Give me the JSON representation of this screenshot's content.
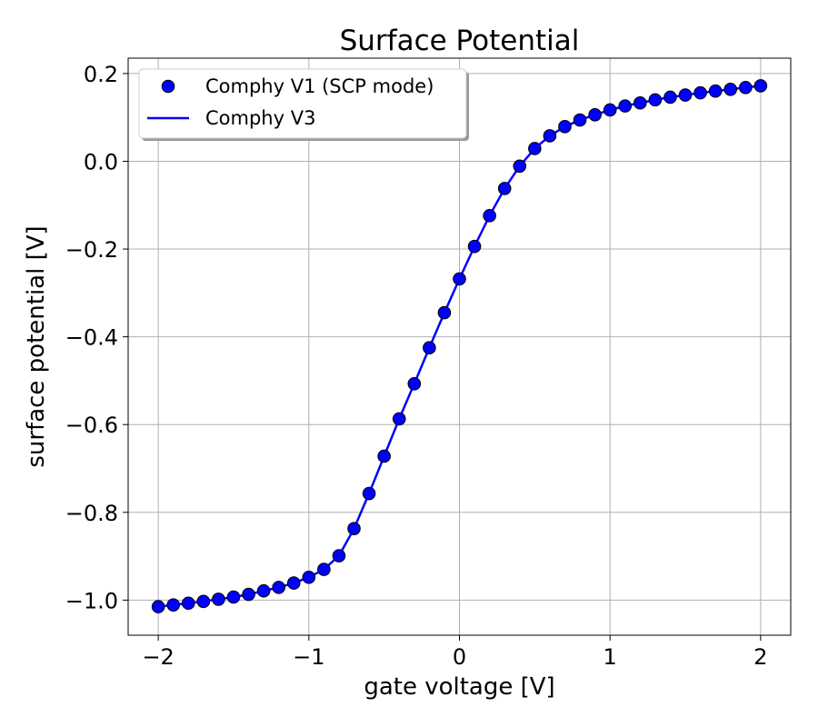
{
  "chart_data": {
    "type": "line",
    "title": "Surface Potential",
    "xlabel": "gate voltage [V]",
    "ylabel": "surface potential [V]",
    "xlim": [
      -2.2,
      2.2
    ],
    "ylim": [
      -1.08,
      0.235
    ],
    "x_ticks": [
      -2,
      -1,
      0,
      1,
      2
    ],
    "x_tick_labels": [
      "−2",
      "−1",
      "0",
      "1",
      "2"
    ],
    "y_ticks": [
      -1.0,
      -0.8,
      -0.6,
      -0.4,
      -0.2,
      0.0,
      0.2
    ],
    "y_tick_labels": [
      "−1.0",
      "−0.8",
      "−0.6",
      "−0.4",
      "−0.2",
      "0.0",
      "0.2"
    ],
    "grid": true,
    "legend_position": "top-left",
    "series": [
      {
        "name": "Comphy V1 (SCP mode)",
        "style": "markers",
        "color": "#0000ff",
        "x": [
          -2.0,
          -1.9,
          -1.8,
          -1.7,
          -1.6,
          -1.5,
          -1.4,
          -1.3,
          -1.2,
          -1.1,
          -1.0,
          -0.9,
          -0.8,
          -0.7,
          -0.6,
          -0.5,
          -0.4,
          -0.3,
          -0.2,
          -0.1,
          0.0,
          0.1,
          0.2,
          0.3,
          0.4,
          0.5,
          0.6,
          0.7,
          0.8,
          0.9,
          1.0,
          1.1,
          1.2,
          1.3,
          1.4,
          1.5,
          1.6,
          1.7,
          1.8,
          1.9,
          2.0
        ],
        "y": [
          -1.015,
          -1.011,
          -1.007,
          -1.003,
          -0.998,
          -0.993,
          -0.987,
          -0.979,
          -0.971,
          -0.961,
          -0.948,
          -0.93,
          -0.899,
          -0.837,
          -0.757,
          -0.672,
          -0.587,
          -0.507,
          -0.425,
          -0.345,
          -0.268,
          -0.194,
          -0.124,
          -0.062,
          -0.011,
          0.029,
          0.058,
          0.079,
          0.094,
          0.106,
          0.117,
          0.126,
          0.133,
          0.14,
          0.146,
          0.151,
          0.156,
          0.16,
          0.164,
          0.168,
          0.172
        ]
      },
      {
        "name": "Comphy V3",
        "style": "line",
        "color": "#0000ff",
        "x": [
          -2.0,
          -1.9,
          -1.8,
          -1.7,
          -1.6,
          -1.5,
          -1.4,
          -1.3,
          -1.2,
          -1.1,
          -1.0,
          -0.9,
          -0.8,
          -0.7,
          -0.6,
          -0.5,
          -0.4,
          -0.3,
          -0.2,
          -0.1,
          0.0,
          0.1,
          0.2,
          0.3,
          0.4,
          0.5,
          0.6,
          0.7,
          0.8,
          0.9,
          1.0,
          1.1,
          1.2,
          1.3,
          1.4,
          1.5,
          1.6,
          1.7,
          1.8,
          1.9,
          2.0
        ],
        "y": [
          -1.015,
          -1.011,
          -1.007,
          -1.003,
          -0.998,
          -0.993,
          -0.987,
          -0.979,
          -0.971,
          -0.961,
          -0.948,
          -0.93,
          -0.899,
          -0.837,
          -0.757,
          -0.672,
          -0.587,
          -0.507,
          -0.425,
          -0.345,
          -0.268,
          -0.194,
          -0.124,
          -0.062,
          -0.011,
          0.029,
          0.058,
          0.079,
          0.094,
          0.106,
          0.117,
          0.126,
          0.133,
          0.14,
          0.146,
          0.151,
          0.156,
          0.16,
          0.164,
          0.168,
          0.172
        ]
      }
    ]
  }
}
